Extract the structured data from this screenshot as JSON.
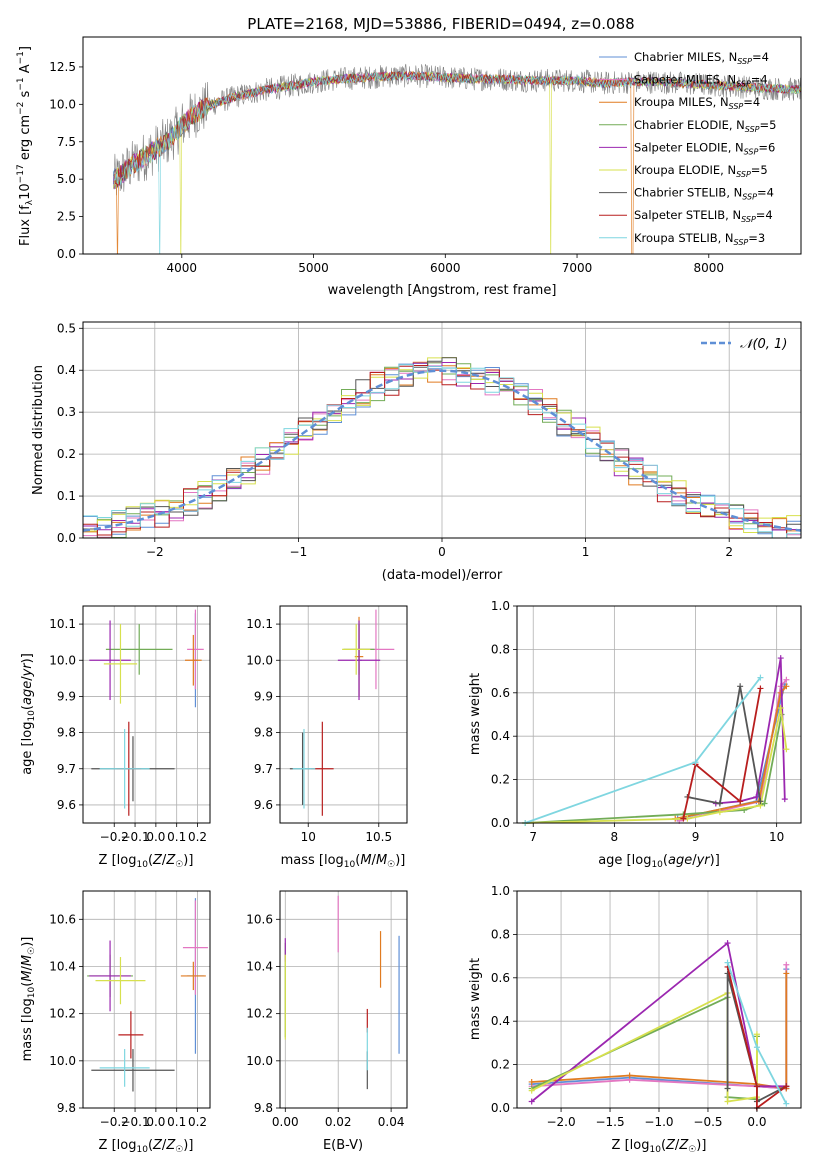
{
  "figure": {
    "title": "PLATE=2168, MJD=53886, FIBERID=0494, z=0.088"
  },
  "models": [
    {
      "name": "Chabrier MILES",
      "nssp": 4,
      "color": "#5f8fd6"
    },
    {
      "name": "Salpeter MILES",
      "nssp": 4,
      "color": "#e377c2"
    },
    {
      "name": "Kroupa MILES",
      "nssp": 4,
      "color": "#e07b20"
    },
    {
      "name": "Chabrier ELODIE",
      "nssp": 5,
      "color": "#72ac57"
    },
    {
      "name": "Salpeter ELODIE",
      "nssp": 6,
      "color": "#9b27b0"
    },
    {
      "name": "Kroupa ELODIE",
      "nssp": 5,
      "color": "#d7e04e"
    },
    {
      "name": "Chabrier STELIB",
      "nssp": 4,
      "color": "#555555"
    },
    {
      "name": "Salpeter STELIB",
      "nssp": 4,
      "color": "#b81e1e"
    },
    {
      "name": "Kroupa STELIB",
      "nssp": 3,
      "color": "#7fd6e0"
    }
  ],
  "chart_data": [
    {
      "id": "spectrum",
      "type": "line",
      "xlabel": "wavelength [Angstrom, rest frame]",
      "ylabel": "Flux [f_λ 10^-17 erg cm^-2 s^-1 A^-1]",
      "xlim": [
        3250,
        8700
      ],
      "ylim": [
        0,
        14.5
      ],
      "xticks": [
        4000,
        5000,
        6000,
        7000,
        8000
      ],
      "yticks": [
        0.0,
        2.5,
        5.0,
        7.5,
        10.0,
        12.5
      ],
      "legend_position": "top-right",
      "data_color": "#7f7f7f",
      "continuum": {
        "x": [
          3500,
          3600,
          3700,
          3800,
          3900,
          4000,
          4100,
          4200,
          4400,
          4600,
          4800,
          5000,
          5200,
          5400,
          5600,
          5800,
          6000,
          6200,
          6400,
          6600,
          6800,
          7000,
          7200,
          7400,
          7600,
          7800,
          8000,
          8200,
          8400,
          8600
        ],
        "y": [
          5.0,
          5.8,
          6.4,
          7.0,
          7.6,
          8.6,
          9.4,
          9.9,
          10.5,
          10.9,
          11.2,
          11.5,
          11.7,
          11.8,
          11.9,
          11.9,
          11.8,
          11.7,
          11.7,
          11.6,
          11.6,
          11.6,
          11.4,
          11.5,
          11.5,
          11.4,
          11.3,
          11.2,
          11.1,
          11.0
        ]
      },
      "dips": [
        {
          "x": 3510,
          "model": 2
        },
        {
          "x": 3830,
          "model": 8
        },
        {
          "x": 3990,
          "model": 5
        },
        {
          "x": 6800,
          "model": 5
        },
        {
          "x": 7420,
          "model": 2
        }
      ]
    },
    {
      "id": "residuals",
      "type": "histogram",
      "xlabel": "(data-model)/error",
      "ylabel": "Normed distribution",
      "xlim": [
        -2.5,
        2.5
      ],
      "ylim": [
        0,
        0.515
      ],
      "xticks": [
        -2,
        -1,
        0,
        1,
        2
      ],
      "yticks": [
        0.0,
        0.1,
        0.2,
        0.3,
        0.4,
        0.5
      ],
      "bin_width": 0.1,
      "reference_label": "𝒩(0, 1)",
      "reference_color": "#5f8fd6",
      "grid": true
    },
    {
      "id": "age-vs-Z",
      "type": "scatter",
      "xlabel": "Z [log10(Z/Z☉)]",
      "ylabel": "age  [log10(age/yr)]",
      "xlim": [
        -0.35,
        0.26
      ],
      "ylim": [
        9.55,
        10.15
      ],
      "xticks": [
        -0.2,
        -0.1,
        0.0,
        0.1,
        0.2
      ],
      "xtick_labels": [
        "−0.2",
        "−0.1",
        "0.0",
        "0.1",
        "0.2"
      ],
      "yticks": [
        9.6,
        9.7,
        9.8,
        9.9,
        10.0,
        10.1
      ],
      "points": [
        {
          "model": 0,
          "x": 0.19,
          "y": 10.0,
          "xerr": 0.01,
          "yerr": 0.13
        },
        {
          "model": 1,
          "x": 0.19,
          "y": 10.03,
          "xerr": 0.04,
          "yerr": 0.11
        },
        {
          "model": 2,
          "x": 0.18,
          "y": 10.0,
          "xerr": 0.04,
          "yerr": 0.07
        },
        {
          "model": 3,
          "x": -0.08,
          "y": 10.03,
          "xerr": 0.16,
          "yerr": 0.07
        },
        {
          "model": 4,
          "x": -0.22,
          "y": 10.0,
          "xerr": 0.1,
          "yerr": 0.11
        },
        {
          "model": 5,
          "x": -0.17,
          "y": 9.99,
          "xerr": 0.08,
          "yerr": 0.11
        },
        {
          "model": 6,
          "x": -0.11,
          "y": 9.7,
          "xerr": 0.2,
          "yerr": 0.09
        },
        {
          "model": 7,
          "x": -0.13,
          "y": 9.7,
          "xerr": 0.06,
          "yerr": 0.13
        },
        {
          "model": 8,
          "x": -0.15,
          "y": 9.7,
          "xerr": 0.12,
          "yerr": 0.11
        }
      ]
    },
    {
      "id": "age-vs-mass",
      "type": "scatter",
      "xlabel": "mass [log10(M/M☉)]",
      "ylabel": "",
      "xlim": [
        9.8,
        10.7
      ],
      "ylim": [
        9.55,
        10.15
      ],
      "xticks": [
        10.0,
        10.5
      ],
      "yticks": [
        9.6,
        9.7,
        9.8,
        9.9,
        10.0,
        10.1
      ],
      "points": [
        {
          "model": 0,
          "x": 10.36,
          "y": 10.0,
          "xerr": 0.02,
          "yerr": 0.1
        },
        {
          "model": 1,
          "x": 10.48,
          "y": 10.03,
          "xerr": 0.13,
          "yerr": 0.11
        },
        {
          "model": 2,
          "x": 10.36,
          "y": 10.01,
          "xerr": 0.03,
          "yerr": 0.11
        },
        {
          "model": 3,
          "x": 10.36,
          "y": 10.03,
          "xerr": 0.11,
          "yerr": 0.07
        },
        {
          "model": 4,
          "x": 10.36,
          "y": 10.0,
          "xerr": 0.15,
          "yerr": 0.11
        },
        {
          "model": 5,
          "x": 10.34,
          "y": 10.03,
          "xerr": 0.1,
          "yerr": 0.07
        },
        {
          "model": 6,
          "x": 9.96,
          "y": 9.7,
          "xerr": 0.09,
          "yerr": 0.1
        },
        {
          "model": 7,
          "x": 10.1,
          "y": 9.7,
          "xerr": 0.08,
          "yerr": 0.13
        },
        {
          "model": 8,
          "x": 9.97,
          "y": 9.7,
          "xerr": 0.08,
          "yerr": 0.11
        }
      ]
    },
    {
      "id": "weight-vs-age",
      "type": "line",
      "xlabel": "age  [log10(age/yr)]",
      "ylabel": "mass weight",
      "xlim": [
        6.8,
        10.3
      ],
      "ylim": [
        0,
        1
      ],
      "xticks": [
        7,
        8,
        9,
        10
      ],
      "yticks": [
        0.0,
        0.2,
        0.4,
        0.6,
        0.8,
        1.0
      ],
      "lines": [
        {
          "model": 0,
          "x": [
            8.78,
            9.75,
            10.02,
            10.1
          ],
          "y": [
            0.02,
            0.1,
            0.52,
            0.64
          ]
        },
        {
          "model": 1,
          "x": [
            8.8,
            9.8,
            10.05,
            10.12
          ],
          "y": [
            0.01,
            0.1,
            0.63,
            0.66
          ]
        },
        {
          "model": 2,
          "x": [
            8.75,
            9.78,
            10.05,
            10.12
          ],
          "y": [
            0.02,
            0.1,
            0.6,
            0.63
          ]
        },
        {
          "model": 3,
          "x": [
            6.9,
            8.85,
            9.6,
            9.85,
            10.06
          ],
          "y": [
            0.0,
            0.04,
            0.06,
            0.09,
            0.5
          ]
        },
        {
          "model": 4,
          "x": [
            9.25,
            9.55,
            9.75,
            10.05,
            10.1
          ],
          "y": [
            0.09,
            0.1,
            0.12,
            0.76,
            0.11
          ]
        },
        {
          "model": 5,
          "x": [
            6.9,
            8.9,
            9.3,
            9.8,
            10.05,
            10.12
          ],
          "y": [
            0.0,
            0.02,
            0.05,
            0.08,
            0.53,
            0.34
          ]
        },
        {
          "model": 6,
          "x": [
            8.9,
            9.3,
            9.55,
            9.8
          ],
          "y": [
            0.12,
            0.09,
            0.63,
            0.1
          ]
        },
        {
          "model": 7,
          "x": [
            8.85,
            9.0,
            9.55,
            9.8
          ],
          "y": [
            0.02,
            0.27,
            0.1,
            0.62
          ]
        },
        {
          "model": 8,
          "x": [
            6.9,
            9.0,
            9.8
          ],
          "y": [
            0.0,
            0.28,
            0.67
          ]
        }
      ]
    },
    {
      "id": "mass-vs-Z",
      "type": "scatter",
      "xlabel": "Z [log10(Z/Z☉)]",
      "ylabel": "mass [log10(M/M☉)]",
      "xlim": [
        -0.35,
        0.26
      ],
      "ylim": [
        9.8,
        10.72
      ],
      "xticks": [
        -0.2,
        -0.1,
        0.0,
        0.1,
        0.2
      ],
      "xtick_labels": [
        "−0.2",
        "−0.1",
        "0.0",
        "0.1",
        "0.2"
      ],
      "yticks": [
        9.8,
        10.0,
        10.2,
        10.4,
        10.6
      ],
      "points": [
        {
          "model": 0,
          "x": 0.19,
          "y": 10.36,
          "xerr": 0.04,
          "yerr": 0.33
        },
        {
          "model": 1,
          "x": 0.19,
          "y": 10.48,
          "xerr": 0.06,
          "yerr": 0.2
        },
        {
          "model": 2,
          "x": 0.18,
          "y": 10.36,
          "xerr": 0.06,
          "yerr": 0.06
        },
        {
          "model": 3,
          "x": -0.22,
          "y": 10.36,
          "xerr": 0.11,
          "yerr": 0.09
        },
        {
          "model": 4,
          "x": -0.22,
          "y": 10.36,
          "xerr": 0.1,
          "yerr": 0.15
        },
        {
          "model": 5,
          "x": -0.17,
          "y": 10.34,
          "xerr": 0.12,
          "yerr": 0.1
        },
        {
          "model": 6,
          "x": -0.11,
          "y": 9.96,
          "xerr": 0.2,
          "yerr": 0.09
        },
        {
          "model": 7,
          "x": -0.12,
          "y": 10.11,
          "xerr": 0.06,
          "yerr": 0.1
        },
        {
          "model": 8,
          "x": -0.15,
          "y": 9.97,
          "xerr": 0.12,
          "yerr": 0.08
        }
      ]
    },
    {
      "id": "mass-vs-EBV",
      "type": "scatter",
      "xlabel": "E(B-V)",
      "ylabel": "",
      "xlim": [
        -0.002,
        0.046
      ],
      "ylim": [
        9.8,
        10.72
      ],
      "xticks": [
        0.0,
        0.02,
        0.04
      ],
      "xtick_labels": [
        "0.00",
        "0.02",
        "0.04"
      ],
      "yticks": [
        9.8,
        10.0,
        10.2,
        10.4,
        10.6
      ],
      "points": [
        {
          "model": 0,
          "x": 0.043,
          "y": 10.28,
          "xerr": 0.0,
          "yerr": 0.25
        },
        {
          "model": 1,
          "x": 0.02,
          "y": 10.58,
          "xerr": 0.0,
          "yerr": 0.12
        },
        {
          "model": 2,
          "x": 0.036,
          "y": 10.43,
          "xerr": 0.0,
          "yerr": 0.12
        },
        {
          "model": 3,
          "x": 0.0,
          "y": 10.3,
          "xerr": 0.0,
          "yerr": 0.2
        },
        {
          "model": 4,
          "x": 0.0,
          "y": 10.47,
          "xerr": 0.0,
          "yerr": 0.05
        },
        {
          "model": 5,
          "x": 0.0,
          "y": 10.27,
          "xerr": 0.0,
          "yerr": 0.18
        },
        {
          "model": 6,
          "x": 0.031,
          "y": 9.96,
          "xerr": 0.0,
          "yerr": 0.08
        },
        {
          "model": 7,
          "x": 0.031,
          "y": 10.17,
          "xerr": 0.0,
          "yerr": 0.05
        },
        {
          "model": 8,
          "x": 0.031,
          "y": 10.05,
          "xerr": 0.0,
          "yerr": 0.09
        }
      ]
    },
    {
      "id": "weight-vs-Z",
      "type": "line",
      "xlabel": "Z [log10(Z/Z☉)]",
      "ylabel": "mass weight",
      "xlim": [
        -2.45,
        0.45
      ],
      "ylim": [
        0,
        1
      ],
      "xticks": [
        -2.0,
        -1.5,
        -1.0,
        -0.5,
        0.0
      ],
      "xtick_labels": [
        "−2.0",
        "−1.5",
        "−1.0",
        "−0.5",
        "0.0"
      ],
      "yticks": [
        0.0,
        0.2,
        0.4,
        0.6,
        0.8,
        1.0
      ],
      "lines": [
        {
          "model": 0,
          "x": [
            -2.3,
            -1.3,
            0.0,
            0.3,
            0.3
          ],
          "y": [
            0.11,
            0.14,
            0.1,
            0.09,
            0.64
          ]
        },
        {
          "model": 1,
          "x": [
            -2.3,
            -1.3,
            0.0,
            0.3,
            0.3
          ],
          "y": [
            0.1,
            0.13,
            0.1,
            0.09,
            0.66
          ]
        },
        {
          "model": 2,
          "x": [
            -2.3,
            -1.3,
            0.0,
            0.3,
            0.3
          ],
          "y": [
            0.12,
            0.15,
            0.11,
            0.09,
            0.62
          ]
        },
        {
          "model": 3,
          "x": [
            -2.3,
            -0.3,
            -0.3,
            0.0,
            0.0
          ],
          "y": [
            0.09,
            0.51,
            0.05,
            0.04,
            0.33
          ]
        },
        {
          "model": 4,
          "x": [
            -2.3,
            -0.3,
            0.0,
            0.3
          ],
          "y": [
            0.03,
            0.76,
            0.1,
            0.1
          ]
        },
        {
          "model": 5,
          "x": [
            -2.3,
            -0.3,
            -0.3,
            0.0,
            0.0
          ],
          "y": [
            0.08,
            0.53,
            0.03,
            0.05,
            0.34
          ]
        },
        {
          "model": 6,
          "x": [
            -0.3,
            -0.3,
            0.0,
            0.0,
            0.3
          ],
          "y": [
            0.09,
            0.62,
            0.1,
            0.03,
            0.1
          ]
        },
        {
          "model": 7,
          "x": [
            -0.3,
            0.0,
            0.0,
            0.3
          ],
          "y": [
            0.65,
            0.1,
            0.0,
            0.1
          ]
        },
        {
          "model": 8,
          "x": [
            -0.3,
            0.0,
            0.3
          ],
          "y": [
            0.67,
            0.28,
            0.02
          ]
        }
      ]
    }
  ]
}
